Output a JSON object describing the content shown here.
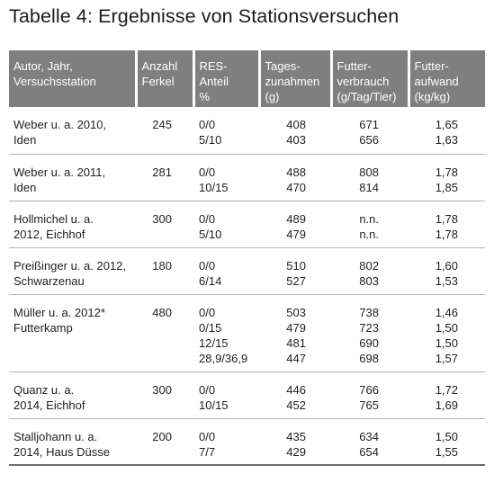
{
  "title": "Tabelle 4: Ergebnisse von Stationsversuchen",
  "headers": [
    [
      "Autor, Jahr,",
      "Versuchsstation"
    ],
    [
      "Anzahl",
      "Ferkel"
    ],
    [
      "RES-",
      "Anteil",
      "%"
    ],
    [
      "Tages-",
      "zunahmen",
      "(g)"
    ],
    [
      "Futter-",
      "verbrauch",
      "(g/Tag/Tier)"
    ],
    [
      "Futter-",
      "aufwand",
      "(kg/kg)"
    ]
  ],
  "rows": [
    {
      "author": [
        "Weber u. a. 2010,",
        "Iden"
      ],
      "ferkel": "245",
      "res": [
        "0/0",
        "5/10"
      ],
      "zunahmen": [
        "408",
        "403"
      ],
      "verbrauch": [
        "671",
        "656"
      ],
      "aufwand": [
        "1,65",
        "1,63"
      ]
    },
    {
      "author": [
        "Weber u. a. 2011,",
        "Iden"
      ],
      "ferkel": "281",
      "res": [
        "0/0",
        "10/15"
      ],
      "zunahmen": [
        "488",
        "470"
      ],
      "verbrauch": [
        "808",
        "814"
      ],
      "aufwand": [
        "1,78",
        "1,85"
      ]
    },
    {
      "author": [
        "Hollmichel u. a.",
        "2012, Eichhof"
      ],
      "ferkel": "300",
      "res": [
        "0/0",
        "5/10"
      ],
      "zunahmen": [
        "489",
        "479"
      ],
      "verbrauch": [
        "n.n.",
        "n.n."
      ],
      "aufwand": [
        "1,78",
        "1,78"
      ]
    },
    {
      "author": [
        "Preißinger u. a. 2012,",
        "Schwarzenau"
      ],
      "ferkel": "180",
      "res": [
        "0/0",
        "6/14"
      ],
      "zunahmen": [
        "510",
        "527"
      ],
      "verbrauch": [
        "802",
        "803"
      ],
      "aufwand": [
        "1,60",
        "1,53"
      ]
    },
    {
      "author": [
        "Müller u. a. 2012*",
        "Futterkamp"
      ],
      "ferkel": "480",
      "res": [
        "0/0",
        "0/15",
        "12/15",
        "28,9/36,9"
      ],
      "zunahmen": [
        "503",
        "479",
        "481",
        "447"
      ],
      "verbrauch": [
        "738",
        "723",
        "690",
        "698"
      ],
      "aufwand": [
        "1,46",
        "1,50",
        "1,50",
        "1,57"
      ]
    },
    {
      "author": [
        "Quanz u. a.",
        "2014, Eichhof"
      ],
      "ferkel": "300",
      "res": [
        "0/0",
        "10/15"
      ],
      "zunahmen": [
        "446",
        "452"
      ],
      "verbrauch": [
        "766",
        "765"
      ],
      "aufwand": [
        "1,72",
        "1,69"
      ]
    },
    {
      "author": [
        "Stalljohann u. a.",
        "2014, Haus Düsse"
      ],
      "ferkel": "200",
      "res": [
        "0/0",
        "7/7"
      ],
      "zunahmen": [
        "435",
        "429"
      ],
      "verbrauch": [
        "634",
        "654"
      ],
      "aufwand": [
        "1,50",
        "1,55"
      ]
    }
  ],
  "colors": {
    "header_bg": "#7f7f7f",
    "header_text": "#ffffff",
    "row_divider": "#b3b3b3",
    "bottom_rule": "#6b6b6b"
  }
}
